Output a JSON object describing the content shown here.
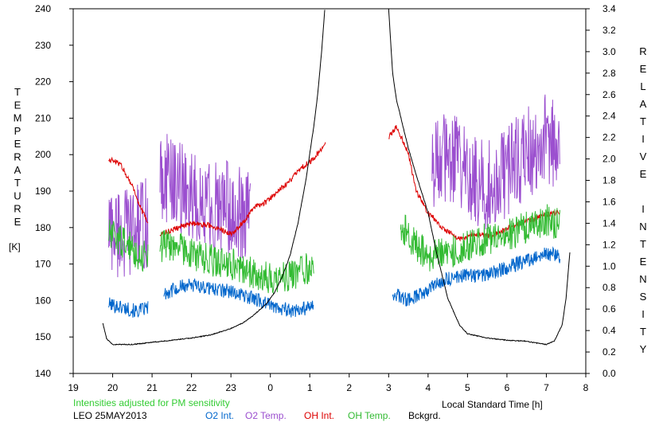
{
  "chart_data": {
    "type": "line",
    "x_axis": {
      "label": "Local Standard Time [h]",
      "range": [
        19,
        32
      ],
      "tick_labels": [
        "19",
        "20",
        "21",
        "22",
        "23",
        "0",
        "1",
        "2",
        "3",
        "4",
        "5",
        "6",
        "7",
        "8"
      ]
    },
    "y_left": {
      "label": "TEMPERATURE",
      "unit": "[K]",
      "range": [
        140,
        240
      ],
      "tick_labels": [
        "140",
        "150",
        "160",
        "170",
        "180",
        "190",
        "200",
        "210",
        "220",
        "230",
        "240"
      ]
    },
    "y_right": {
      "label": "RELATIVE INTENSITY",
      "range": [
        0.0,
        3.4
      ],
      "tick_labels": [
        "0.0",
        "0.2",
        "0.4",
        "0.6",
        "0.8",
        "1.0",
        "1.2",
        "1.4",
        "1.6",
        "1.8",
        "2.0",
        "2.2",
        "2.4",
        "2.6",
        "2.8",
        "3.0",
        "3.2",
        "3.4"
      ]
    },
    "note": "Intensities adjusted for PM sensitivity",
    "station_date": "LEO 25MAY2013",
    "series": [
      {
        "name": "O2 Int.",
        "axis": "left",
        "color": "#0066cc",
        "noise": 2.0,
        "segments": [
          {
            "x": [
              19.9,
              20.3,
              20.6,
              20.9
            ],
            "y": [
              159,
              158,
              157,
              158
            ]
          },
          {
            "x": [
              21.3,
              21.8,
              22.2,
              22.7,
              23.2,
              23.7,
              24.2,
              24.7,
              25.1
            ],
            "y": [
              162,
              164,
              164,
              163,
              162,
              160,
              158,
              157,
              159
            ]
          },
          {
            "x": [
              27.1,
              27.5,
              28.0,
              28.5,
              29.0,
              29.5,
              30.0,
              30.5,
              31.0,
              31.35
            ],
            "y": [
              162,
              160,
              163,
              166,
              167,
              167,
              169,
              171,
              173,
              172
            ]
          }
        ]
      },
      {
        "name": "O2 Temp.",
        "axis": "left",
        "color": "#9b4fcf",
        "noise": 13.0,
        "segments": [
          {
            "x": [
              19.9,
              20.3,
              20.6,
              20.9
            ],
            "y": [
              180,
              178,
              180,
              181
            ]
          },
          {
            "x": [
              21.2,
              21.6,
              22.0,
              22.4,
              22.8,
              23.2,
              23.5
            ],
            "y": [
              195,
              192,
              188,
              186,
              186,
              184,
              183
            ]
          },
          {
            "x": [
              28.1,
              28.6,
              29.0,
              29.5,
              30.0,
              30.5,
              31.0,
              31.35
            ],
            "y": [
              198,
              200,
              194,
              192,
              195,
              200,
              205,
              200
            ]
          }
        ]
      },
      {
        "name": "OH Int.",
        "axis": "right",
        "color": "#dd0000",
        "noise": 0.025,
        "segments": [
          {
            "x": [
              19.9,
              20.2,
              20.5,
              20.7,
              20.9
            ],
            "y": [
              2.0,
              1.95,
              1.75,
              1.55,
              1.4
            ]
          },
          {
            "x": [
              21.2,
              21.6,
              22.0,
              22.5,
              23.0,
              23.3,
              23.6,
              23.9,
              24.2,
              24.5,
              24.8,
              25.1,
              25.4
            ],
            "y": [
              1.3,
              1.35,
              1.4,
              1.38,
              1.3,
              1.4,
              1.55,
              1.6,
              1.7,
              1.8,
              1.92,
              2.0,
              2.15
            ]
          },
          {
            "x": [
              27.0,
              27.2,
              27.5,
              27.7,
              28.0,
              28.4,
              28.8,
              29.2,
              29.6,
              30.0,
              30.5,
              31.0,
              31.35
            ],
            "y": [
              2.2,
              2.3,
              2.05,
              1.7,
              1.5,
              1.35,
              1.25,
              1.3,
              1.28,
              1.35,
              1.42,
              1.48,
              1.5
            ]
          }
        ]
      },
      {
        "name": "OH Temp.",
        "axis": "left",
        "color": "#33bb33",
        "noise": 4.5,
        "segments": [
          {
            "x": [
              19.9,
              20.3,
              20.7,
              20.9
            ],
            "y": [
              178,
              176,
              172,
              173
            ]
          },
          {
            "x": [
              21.2,
              21.6,
              22.0,
              22.5,
              23.0,
              23.5,
              24.0,
              24.5,
              24.9,
              25.1
            ],
            "y": [
              175,
              175,
              173,
              171,
              170,
              168,
              166,
              167,
              169,
              168
            ]
          },
          {
            "x": [
              27.3,
              27.7,
              28.0,
              28.5,
              29.0,
              29.5,
              30.0,
              30.5,
              31.0,
              31.35
            ],
            "y": [
              181,
              175,
              172,
              173,
              175,
              177,
              178,
              180,
              182,
              181
            ]
          }
        ]
      },
      {
        "name": "Bckgrd.",
        "axis": "right",
        "color": "#000000",
        "noise": 0.004,
        "segments": [
          {
            "x": [
              19.75,
              19.85,
              20.0,
              20.5,
              21.0,
              21.5,
              22.0,
              22.5,
              23.0,
              23.3,
              23.6,
              23.9,
              24.1,
              24.3,
              24.5,
              24.7,
              24.9,
              25.1,
              25.2,
              25.3,
              25.38
            ],
            "y": [
              0.47,
              0.32,
              0.27,
              0.27,
              0.29,
              0.31,
              0.33,
              0.36,
              0.42,
              0.47,
              0.55,
              0.65,
              0.75,
              0.9,
              1.1,
              1.4,
              1.8,
              2.3,
              2.6,
              3.0,
              3.4
            ]
          },
          {
            "x": [
              27.0,
              27.1,
              27.2,
              27.3,
              27.5,
              27.7,
              28.0,
              28.2,
              28.5,
              28.8,
              29.0,
              29.5,
              30.0,
              30.5,
              30.8,
              31.0,
              31.2,
              31.4,
              31.5,
              31.6
            ],
            "y": [
              3.4,
              2.8,
              2.55,
              2.4,
              2.1,
              1.85,
              1.5,
              1.15,
              0.7,
              0.45,
              0.37,
              0.33,
              0.31,
              0.3,
              0.28,
              0.27,
              0.3,
              0.45,
              0.7,
              1.15
            ]
          }
        ]
      }
    ]
  }
}
